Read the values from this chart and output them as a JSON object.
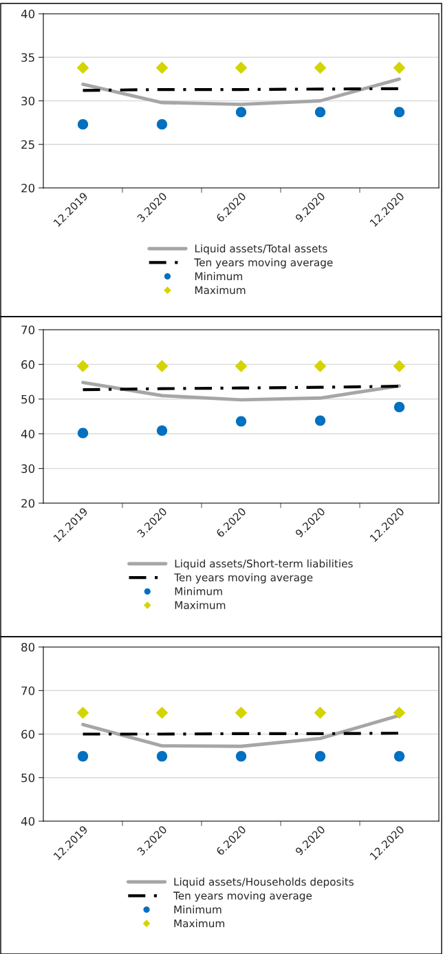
{
  "chart_data": [
    {
      "type": "line",
      "categories": [
        "12.2019",
        "3.2020",
        "6.2020",
        "9.2020",
        "12.2020"
      ],
      "ylim": [
        20,
        40
      ],
      "yticks": [
        20,
        25,
        30,
        35,
        40
      ],
      "grid": "y",
      "legend": "bottom",
      "series": [
        {
          "name": "Liquid assets/Total assets",
          "type": "line",
          "color": "#a6a6a6",
          "line_style": "solid",
          "marker": "none",
          "values": [
            31.9,
            29.8,
            29.6,
            30.0,
            32.5
          ]
        },
        {
          "name": "Ten years moving average",
          "type": "line",
          "color": "#000000",
          "line_style": "dashdot",
          "marker": "none",
          "values": [
            31.2,
            31.3,
            31.3,
            31.35,
            31.4
          ]
        },
        {
          "name": "Minimum",
          "type": "scatter",
          "color": "#0070c0",
          "marker": "circle",
          "values": [
            27.3,
            27.3,
            28.7,
            28.7,
            28.7
          ]
        },
        {
          "name": "Maximum",
          "type": "scatter",
          "color": "#d4d400",
          "marker": "diamond",
          "values": [
            33.8,
            33.8,
            33.8,
            33.8,
            33.8
          ]
        }
      ]
    },
    {
      "type": "line",
      "categories": [
        "12.2019",
        "3.2020",
        "6.2020",
        "9.2020",
        "12.2020"
      ],
      "ylim": [
        20,
        70
      ],
      "yticks": [
        20,
        30,
        40,
        50,
        60,
        70
      ],
      "grid": "y",
      "legend": "bottom",
      "series": [
        {
          "name": "Liquid assets/Short-term liabilities",
          "type": "line",
          "color": "#a6a6a6",
          "line_style": "solid",
          "marker": "none",
          "values": [
            54.8,
            51.0,
            49.8,
            50.3,
            53.8
          ]
        },
        {
          "name": "Ten years moving average",
          "type": "line",
          "color": "#000000",
          "line_style": "dashdot",
          "marker": "none",
          "values": [
            52.7,
            53.0,
            53.2,
            53.4,
            53.7
          ]
        },
        {
          "name": "Minimum",
          "type": "scatter",
          "color": "#0070c0",
          "marker": "circle",
          "values": [
            40.2,
            40.9,
            43.6,
            43.8,
            47.7
          ]
        },
        {
          "name": "Maximum",
          "type": "scatter",
          "color": "#d4d400",
          "marker": "diamond",
          "values": [
            59.5,
            59.5,
            59.5,
            59.5,
            59.5
          ]
        }
      ]
    },
    {
      "type": "line",
      "categories": [
        "12.2019",
        "3.2020",
        "6.2020",
        "9.2020",
        "12.2020"
      ],
      "ylim": [
        40,
        80
      ],
      "yticks": [
        40,
        50,
        60,
        70,
        80
      ],
      "grid": "y",
      "legend": "bottom",
      "series": [
        {
          "name": "Liquid assets/Households deposits",
          "type": "line",
          "color": "#a6a6a6",
          "line_style": "solid",
          "marker": "none",
          "values": [
            62.2,
            57.3,
            57.2,
            59.0,
            64.3
          ]
        },
        {
          "name": "Ten years moving average",
          "type": "line",
          "color": "#000000",
          "line_style": "dashdot",
          "marker": "none",
          "values": [
            60.0,
            60.0,
            60.1,
            60.1,
            60.2
          ]
        },
        {
          "name": "Minimum",
          "type": "scatter",
          "color": "#0070c0",
          "marker": "circle",
          "values": [
            54.9,
            54.9,
            54.9,
            54.9,
            54.9
          ]
        },
        {
          "name": "Maximum",
          "type": "scatter",
          "color": "#d4d400",
          "marker": "diamond",
          "values": [
            64.9,
            64.9,
            64.9,
            64.9,
            64.9
          ]
        }
      ]
    }
  ]
}
